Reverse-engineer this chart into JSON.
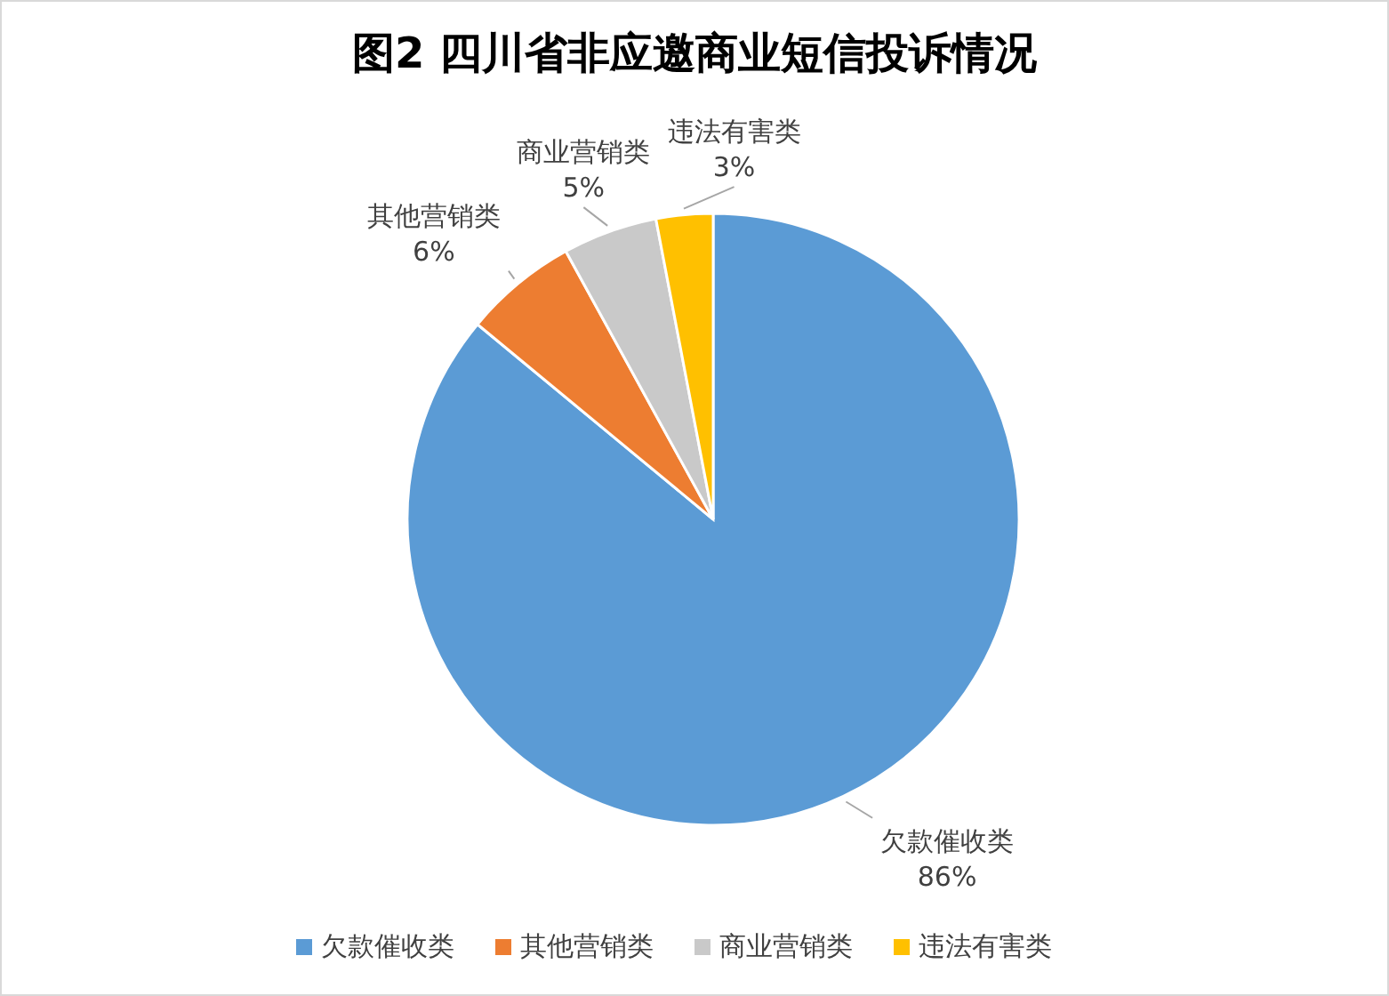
{
  "chart_data": {
    "type": "pie",
    "title": "图2 四川省非应邀商业短信投诉情况",
    "categories": [
      "欠款催收类",
      "其他营销类",
      "商业营销类",
      "违法有害类"
    ],
    "values": [
      86,
      6,
      5,
      3
    ],
    "colors": [
      "#5b9bd5",
      "#ed7d31",
      "#c9c9c9",
      "#ffc000"
    ],
    "value_labels": [
      "86%",
      "6%",
      "5%",
      "3%"
    ],
    "legend": "bottom"
  }
}
